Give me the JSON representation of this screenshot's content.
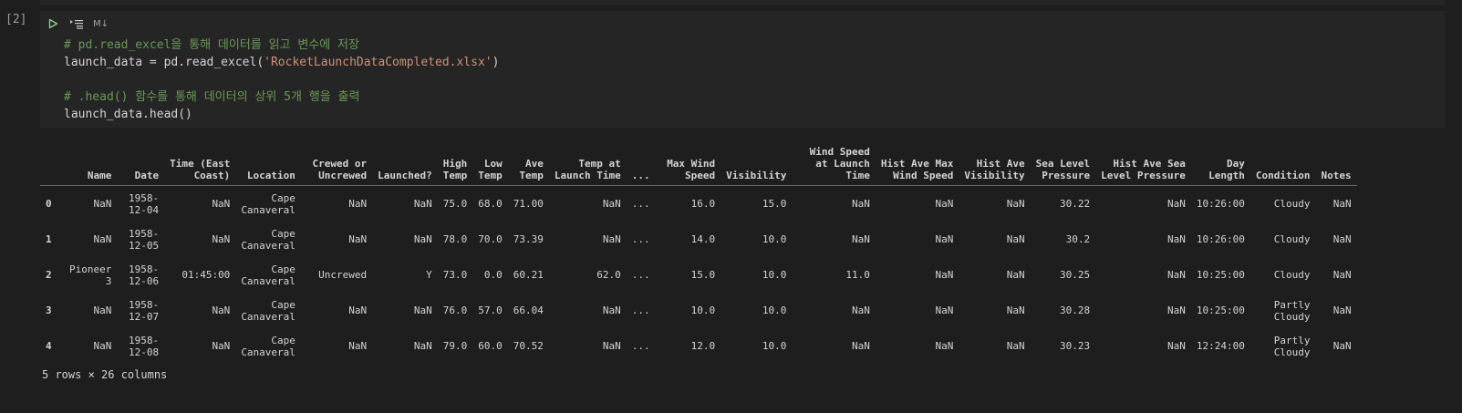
{
  "cell": {
    "execution_count": "[2]",
    "markdown_label": "M↓",
    "code_lines": [
      {
        "tokens": [
          {
            "t": "c",
            "v": "# pd.read_excel을 통해 데이터를 읽고 변수에 저장"
          }
        ]
      },
      {
        "tokens": [
          {
            "t": "p",
            "v": "launch_data = pd.read_excel("
          },
          {
            "t": "s",
            "v": "'RocketLaunchDataCompleted.xlsx'"
          },
          {
            "t": "p",
            "v": ")"
          }
        ]
      },
      {
        "tokens": []
      },
      {
        "tokens": [
          {
            "t": "c",
            "v": "# .head() 함수를 통해 데이터의 상위 5개 행을 출력"
          }
        ]
      },
      {
        "tokens": [
          {
            "t": "p",
            "v": "launch_data.head()"
          }
        ]
      }
    ]
  },
  "output": {
    "columns": [
      "Name",
      "Date",
      "Time (East Coast)",
      "Location",
      "Crewed or Uncrewed",
      "Launched?",
      "High Temp",
      "Low Temp",
      "Ave Temp",
      "Temp at Launch Time",
      "...",
      "Max Wind Speed",
      "Visibility",
      "Wind Speed at Launch Time",
      "Hist Ave Max Wind Speed",
      "Hist Ave Visibility",
      "Sea Level Pressure",
      "Hist Ave Sea Level Pressure",
      "Day Length",
      "Condition",
      "Notes"
    ],
    "header_widths": [
      4,
      6,
      10,
      8,
      10,
      9,
      4,
      4,
      4,
      11,
      3,
      9,
      9,
      12,
      12,
      10,
      9,
      14,
      6,
      8,
      4
    ],
    "rows": [
      {
        "index": "0",
        "cells": [
          "NaN",
          "1958-12-04",
          "NaN",
          "Cape Canaveral",
          "NaN",
          "NaN",
          "75.0",
          "68.0",
          "71.00",
          "NaN",
          "...",
          "16.0",
          "15.0",
          "NaN",
          "NaN",
          "NaN",
          "30.22",
          "NaN",
          "10:26:00",
          "Cloudy",
          "NaN"
        ]
      },
      {
        "index": "1",
        "cells": [
          "NaN",
          "1958-12-05",
          "NaN",
          "Cape Canaveral",
          "NaN",
          "NaN",
          "78.0",
          "70.0",
          "73.39",
          "NaN",
          "...",
          "14.0",
          "10.0",
          "NaN",
          "NaN",
          "NaN",
          "30.2",
          "NaN",
          "10:26:00",
          "Cloudy",
          "NaN"
        ]
      },
      {
        "index": "2",
        "cells": [
          "Pioneer 3",
          "1958-12-06",
          "01:45:00",
          "Cape Canaveral",
          "Uncrewed",
          "Y",
          "73.0",
          "0.0",
          "60.21",
          "62.0",
          "...",
          "15.0",
          "10.0",
          "11.0",
          "NaN",
          "NaN",
          "30.25",
          "NaN",
          "10:25:00",
          "Cloudy",
          "NaN"
        ]
      },
      {
        "index": "3",
        "cells": [
          "NaN",
          "1958-12-07",
          "NaN",
          "Cape Canaveral",
          "NaN",
          "NaN",
          "76.0",
          "57.0",
          "66.04",
          "NaN",
          "...",
          "10.0",
          "10.0",
          "NaN",
          "NaN",
          "NaN",
          "30.28",
          "NaN",
          "10:25:00",
          "Partly Cloudy",
          "NaN"
        ]
      },
      {
        "index": "4",
        "cells": [
          "NaN",
          "1958-12-08",
          "NaN",
          "Cape Canaveral",
          "NaN",
          "NaN",
          "79.0",
          "60.0",
          "70.52",
          "NaN",
          "...",
          "12.0",
          "10.0",
          "NaN",
          "NaN",
          "NaN",
          "30.23",
          "NaN",
          "12:24:00",
          "Partly Cloudy",
          "NaN"
        ]
      }
    ],
    "summary": "5 rows × 26 columns"
  },
  "colors": {
    "comment": "#6a9955",
    "string": "#ce9178",
    "run_icon": "#89d185",
    "background": "#1e1e1e",
    "cell_background": "#252526"
  },
  "icons": [
    "run-cell-icon",
    "run-by-line-icon"
  ]
}
